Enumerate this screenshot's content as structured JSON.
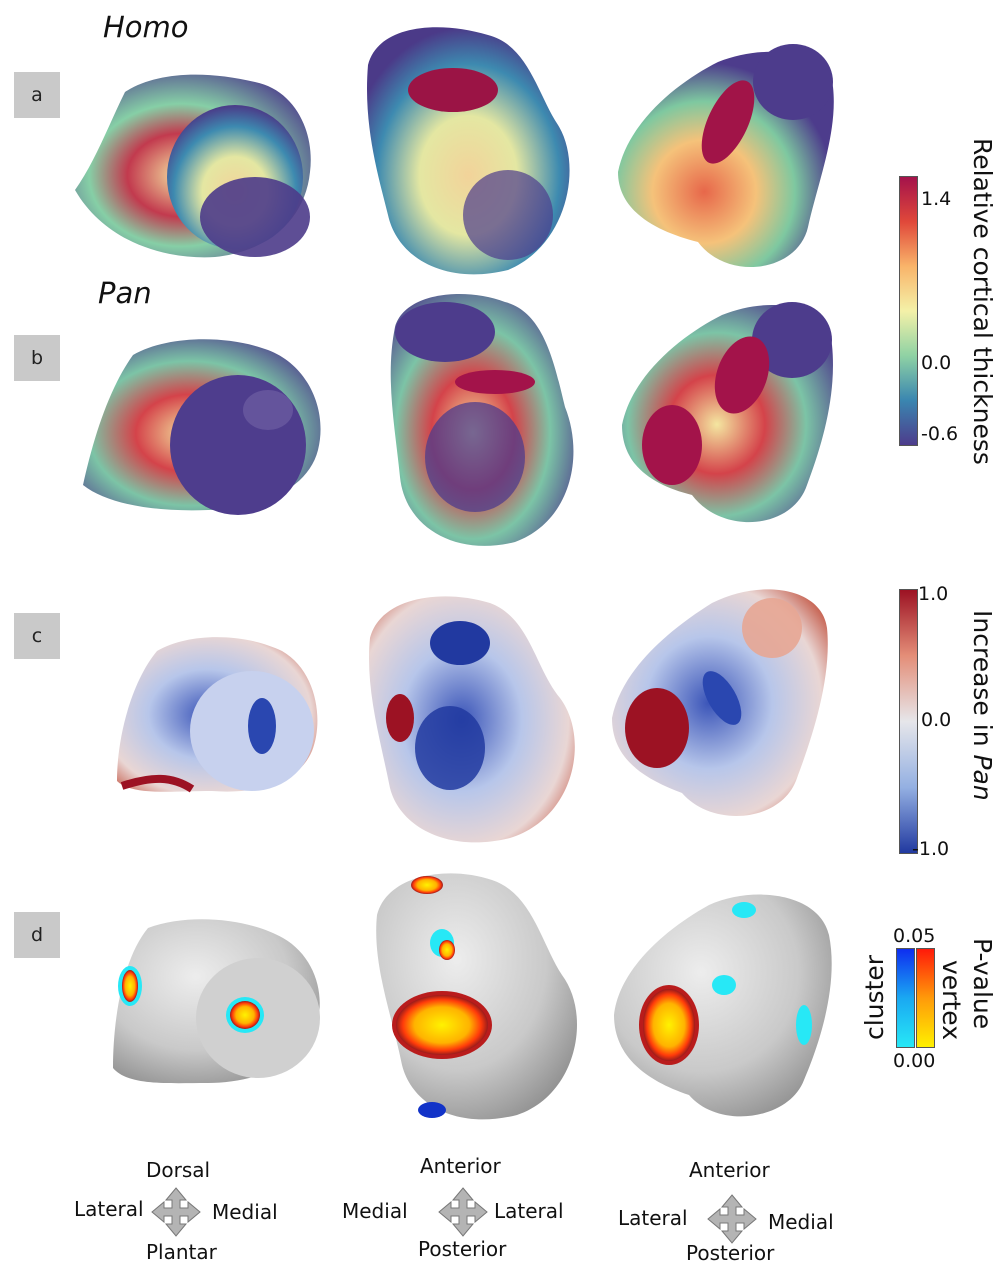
{
  "rows": [
    {
      "tag": "a",
      "taxon": "Homo"
    },
    {
      "tag": "b",
      "taxon": "Pan"
    },
    {
      "tag": "c"
    },
    {
      "tag": "d"
    }
  ],
  "colorbars": {
    "thickness": {
      "label": "Relative cortical thickness",
      "ticks": [
        "1.4",
        "0.0",
        "-0.6"
      ],
      "colors": [
        "#a4124b",
        "#e0483a",
        "#f9b46a",
        "#f4f1a8",
        "#8fd2a4",
        "#3a86b0",
        "#4d3c8c"
      ]
    },
    "increase": {
      "label_prefix": "Increase in ",
      "label_taxon": "Pan",
      "ticks": [
        "1.0",
        "0.0",
        "-1.0"
      ],
      "colors": [
        "#9c1223",
        "#e48e78",
        "#e6e6ea",
        "#94b0e2",
        "#2139a0"
      ]
    },
    "pvalue": {
      "label": "P-value",
      "cluster_label": "cluster",
      "vertex_label": "vertex",
      "ticks": [
        "0.05",
        "0.00"
      ],
      "cluster_colors": [
        "#0e2ef0",
        "#1aa8f2",
        "#27e8f6"
      ],
      "vertex_colors": [
        "#ff1a0a",
        "#ff9a0a",
        "#fff000"
      ]
    }
  },
  "orientation": [
    {
      "top": "Dorsal",
      "left": "Lateral",
      "right": "Medial",
      "bottom": "Plantar"
    },
    {
      "top": "Anterior",
      "left": "Medial",
      "right": "Lateral",
      "bottom": "Posterior"
    },
    {
      "top": "Anterior",
      "left": "Lateral",
      "right": "Medial",
      "bottom": "Posterior"
    }
  ]
}
